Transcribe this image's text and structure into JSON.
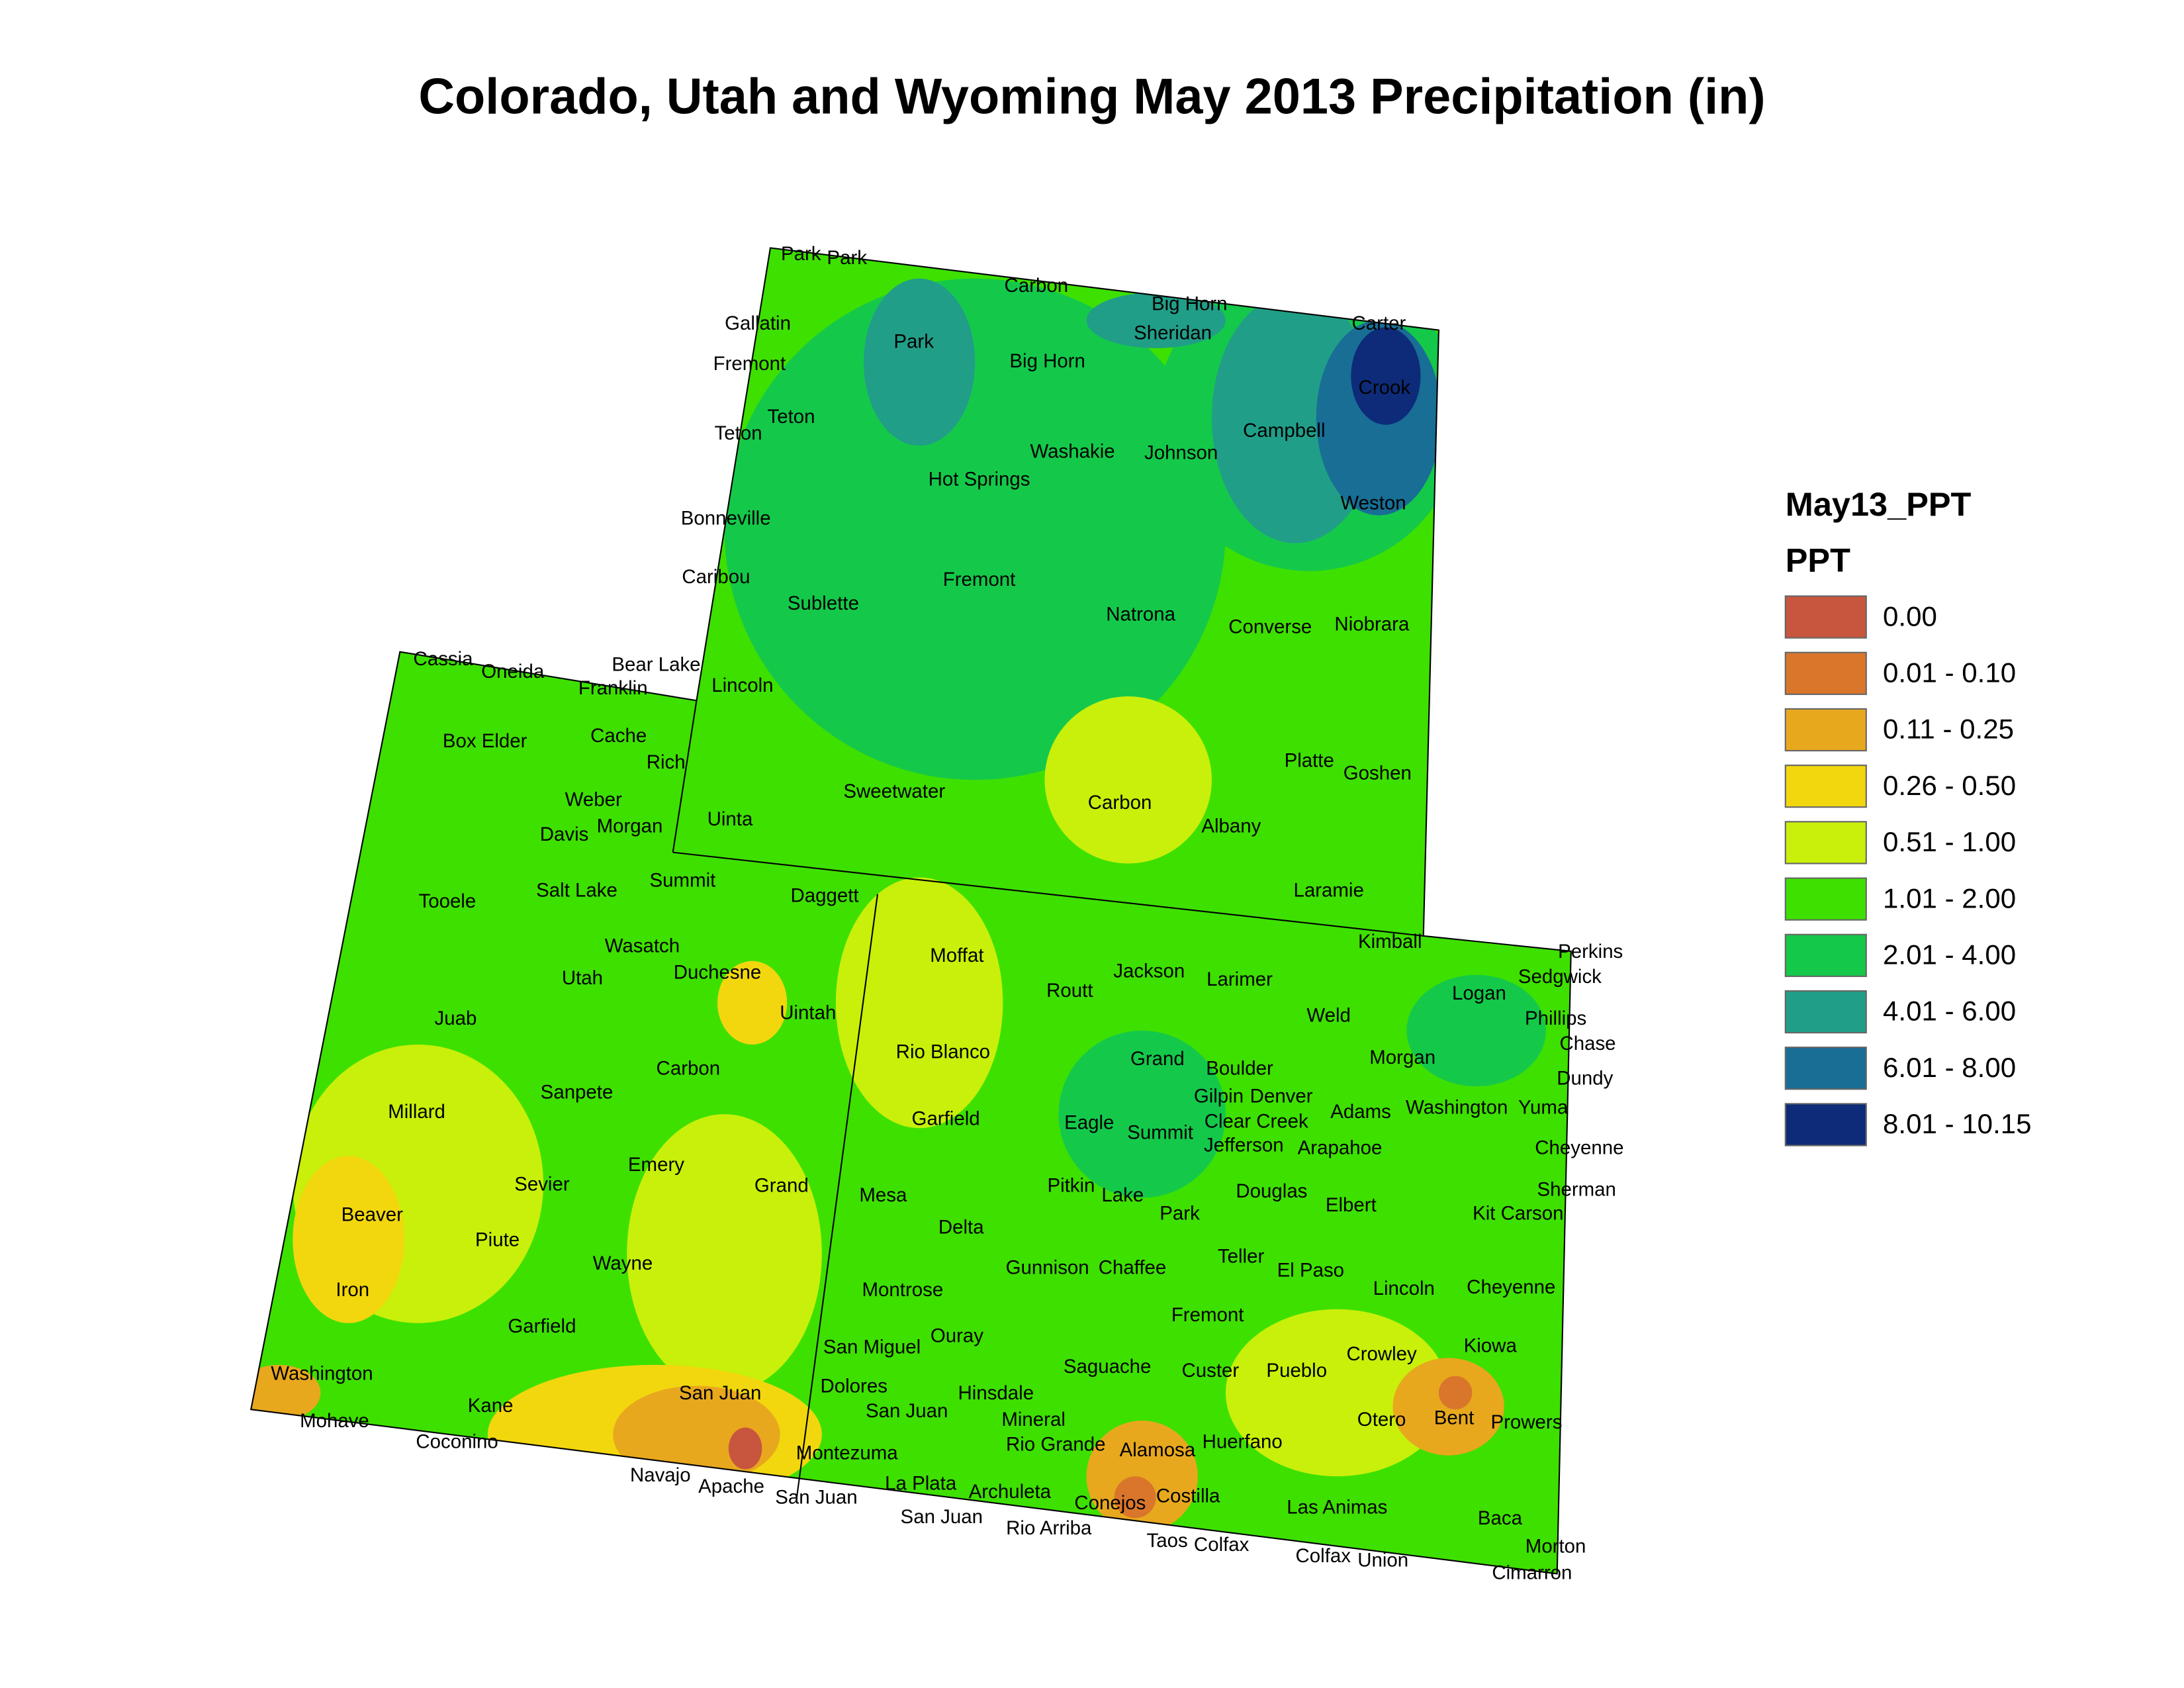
{
  "title": "Colorado, Utah and Wyoming May 2013 Precipitation (in)",
  "legend": {
    "title": "May13_PPT",
    "subtitle": "PPT",
    "items": [
      {
        "label": "0.00",
        "color": "#c8553d"
      },
      {
        "label": "0.01 - 0.10",
        "color": "#d9762b"
      },
      {
        "label": "0.11 - 0.25",
        "color": "#e8a81e"
      },
      {
        "label": "0.26 - 0.50",
        "color": "#f2d70e"
      },
      {
        "label": "0.51 - 1.00",
        "color": "#c8f00a"
      },
      {
        "label": "1.01 - 2.00",
        "color": "#3ee000"
      },
      {
        "label": "2.01 - 4.00",
        "color": "#14c94a"
      },
      {
        "label": "4.01 - 6.00",
        "color": "#219e88"
      },
      {
        "label": "6.01 - 8.00",
        "color": "#186e95"
      },
      {
        "label": "8.01 - 10.15",
        "color": "#0d2b78"
      }
    ]
  },
  "counties": [
    "Park",
    "Park",
    "Carbon",
    "Big Horn",
    "Gallatin",
    "Carter",
    "Sheridan",
    "Park",
    "Fremont",
    "Big Horn",
    "Crook",
    "Teton",
    "Teton",
    "Campbell",
    "Washakie",
    "Johnson",
    "Hot Springs",
    "Weston",
    "Bonneville",
    "Caribou",
    "Fremont",
    "Sublette",
    "Natrona",
    "Converse",
    "Niobrara",
    "Lincoln",
    "Platte",
    "Goshen",
    "Sweetwater",
    "Carbon",
    "Uinta",
    "Albany",
    "Laramie",
    "Cassia",
    "Oneida",
    "Bear Lake",
    "Franklin",
    "Box Elder",
    "Cache",
    "Rich",
    "Weber",
    "Davis",
    "Morgan",
    "Tooele",
    "Salt Lake",
    "Summit",
    "Daggett",
    "Wasatch",
    "Utah",
    "Duchesne",
    "Uintah",
    "Juab",
    "Carbon",
    "Sanpete",
    "Millard",
    "Emery",
    "Grand",
    "Sevier",
    "Beaver",
    "Piute",
    "Wayne",
    "Iron",
    "Garfield",
    "Washington",
    "San Juan",
    "Kane",
    "Mohave",
    "Coconino",
    "Navajo",
    "Apache",
    "Kimball",
    "Perkins",
    "Sedgwick",
    "Moffat",
    "Jackson",
    "Larimer",
    "Routt",
    "Logan",
    "Phillips",
    "Weld",
    "Chase",
    "Rio Blanco",
    "Morgan",
    "Grand",
    "Boulder",
    "Dundy",
    "Gilpin",
    "Denver",
    "Washington",
    "Yuma",
    "Adams",
    "Garfield",
    "Eagle",
    "Clear Creek",
    "Summit",
    "Jefferson",
    "Arapahoe",
    "Cheyenne",
    "Douglas",
    "Sherman",
    "Pitkin",
    "Lake",
    "Mesa",
    "Elbert",
    "Park",
    "Kit Carson",
    "Delta",
    "Teller",
    "Gunnison",
    "Chaffee",
    "El Paso",
    "Lincoln",
    "Cheyenne",
    "Montrose",
    "Fremont",
    "Ouray",
    "San Miguel",
    "Kiowa",
    "Crowley",
    "Saguache",
    "Custer",
    "Pueblo",
    "Dolores",
    "Hinsdale",
    "Bent",
    "Otero",
    "Prowers",
    "San Juan",
    "Mineral",
    "Huerfano",
    "Rio Grande",
    "Alamosa",
    "Montezuma",
    "La Plata",
    "Archuleta",
    "Costilla",
    "San Juan",
    "Conejos",
    "Las Animas",
    "Baca",
    "San Juan",
    "Rio Arriba",
    "Taos",
    "Colfax",
    "Morton",
    "Colfax",
    "Union",
    "Cimarron"
  ]
}
